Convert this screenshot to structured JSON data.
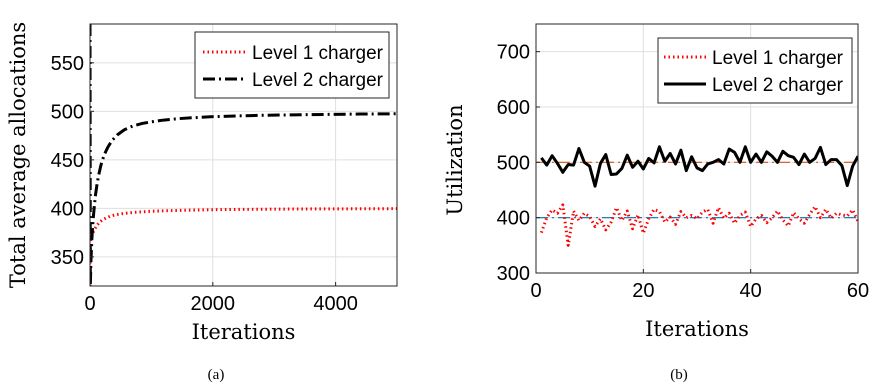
{
  "chart_data": [
    {
      "type": "line",
      "caption": "(a)",
      "xlabel": "Iterations",
      "ylabel": "Total average allocations",
      "xlim": [
        0,
        5000
      ],
      "ylim": [
        320,
        590
      ],
      "xticks": [
        0,
        2000,
        4000
      ],
      "xtick_labels": [
        "0",
        "2000",
        "4000"
      ],
      "yticks": [
        350,
        400,
        450,
        500,
        550
      ],
      "ytick_labels": [
        "350",
        "400",
        "450",
        "500",
        "550"
      ],
      "grid": true,
      "legend_position": "top-right",
      "series": [
        {
          "name": "Level 1 charger",
          "color": "#ff0000",
          "style": "dotted",
          "x": [
            0,
            5,
            15,
            30,
            50,
            70,
            90,
            120,
            160,
            200,
            260,
            330,
            420,
            520,
            650,
            800,
            1000,
            1250,
            1500,
            1800,
            2200,
            2600,
            3000,
            3500,
            4000,
            4500,
            5000
          ],
          "y": [
            320,
            360,
            368,
            372,
            375,
            378,
            380,
            383,
            386,
            388,
            390,
            392,
            393.5,
            394.5,
            395.5,
            396.3,
            397,
            397.6,
            398,
            398.4,
            398.8,
            399,
            399.2,
            399.4,
            399.5,
            399.6,
            399.7
          ]
        },
        {
          "name": "Level 2 charger",
          "color": "#000000",
          "style": "dashdot",
          "x": [
            0,
            5,
            15,
            30,
            50,
            70,
            90,
            110,
            140,
            180,
            230,
            290,
            360,
            450,
            560,
            700,
            850,
            1000,
            1200,
            1450,
            1700,
            2000,
            2400,
            2800,
            3300,
            3800,
            4400,
            5000
          ],
          "y": [
            590,
            320,
            345,
            368,
            388,
            402,
            414,
            423,
            434,
            445,
            455,
            463,
            470,
            476,
            481,
            485,
            487.5,
            489.2,
            491,
            492.5,
            493.5,
            494.5,
            495.3,
            495.9,
            496.4,
            496.8,
            497.2,
            497.5
          ]
        }
      ]
    },
    {
      "type": "line",
      "caption": "(b)",
      "xlabel": "Iterations",
      "ylabel": "Utilization",
      "xlim": [
        0,
        60
      ],
      "ylim": [
        300,
        750
      ],
      "xticks": [
        0,
        20,
        40,
        60
      ],
      "xtick_labels": [
        "0",
        "20",
        "40",
        "60"
      ],
      "yticks": [
        300,
        400,
        500,
        600,
        700
      ],
      "ytick_labels": [
        "300",
        "400",
        "500",
        "600",
        "700"
      ],
      "grid": true,
      "legend_position": "top-right",
      "reference_lines": [
        {
          "y": 500,
          "color": "#d95319",
          "style": "dashdot"
        },
        {
          "y": 400,
          "color": "#0072bd",
          "style": "dashdot"
        }
      ],
      "series": [
        {
          "name": "Level 1 charger",
          "color": "#ff0000",
          "style": "dotted",
          "x": [
            1,
            2,
            3,
            4,
            5,
            6,
            7,
            8,
            9,
            10,
            11,
            12,
            13,
            14,
            15,
            16,
            17,
            18,
            19,
            20,
            21,
            22,
            23,
            24,
            25,
            26,
            27,
            28,
            29,
            30,
            31,
            32,
            33,
            34,
            35,
            36,
            37,
            38,
            39,
            40,
            41,
            42,
            43,
            44,
            45,
            46,
            47,
            48,
            49,
            50,
            51,
            52,
            53,
            54,
            55,
            56,
            57,
            58,
            59,
            60
          ],
          "y": [
            373,
            400,
            414,
            408,
            423,
            350,
            412,
            395,
            408,
            402,
            384,
            398,
            378,
            392,
            418,
            395,
            412,
            380,
            405,
            372,
            398,
            415,
            411,
            392,
            401,
            388,
            411,
            400,
            404,
            398,
            410,
            415,
            390,
            418,
            399,
            408,
            390,
            404,
            410,
            384,
            398,
            404,
            391,
            400,
            412,
            396,
            385,
            409,
            398,
            390,
            406,
            420,
            400,
            415,
            399,
            408,
            405,
            403,
            414,
            393
          ]
        },
        {
          "name": "Level 2 charger",
          "color": "#000000",
          "style": "solid",
          "x": [
            1,
            2,
            3,
            4,
            5,
            6,
            7,
            8,
            9,
            10,
            11,
            12,
            13,
            14,
            15,
            16,
            17,
            18,
            19,
            20,
            21,
            22,
            23,
            24,
            25,
            26,
            27,
            28,
            29,
            30,
            31,
            32,
            33,
            34,
            35,
            36,
            37,
            38,
            39,
            40,
            41,
            42,
            43,
            44,
            45,
            46,
            47,
            48,
            49,
            50,
            51,
            52,
            53,
            54,
            55,
            56,
            57,
            58,
            59,
            60
          ],
          "y": [
            508,
            495,
            512,
            498,
            482,
            496,
            495,
            525,
            500,
            493,
            457,
            498,
            514,
            478,
            479,
            489,
            513,
            491,
            502,
            488,
            507,
            499,
            528,
            502,
            516,
            497,
            522,
            485,
            510,
            490,
            485,
            497,
            500,
            505,
            497,
            524,
            518,
            500,
            528,
            500,
            515,
            500,
            519,
            511,
            500,
            520,
            512,
            509,
            496,
            515,
            500,
            507,
            527,
            496,
            505,
            505,
            494,
            458,
            493,
            511
          ]
        }
      ]
    }
  ]
}
